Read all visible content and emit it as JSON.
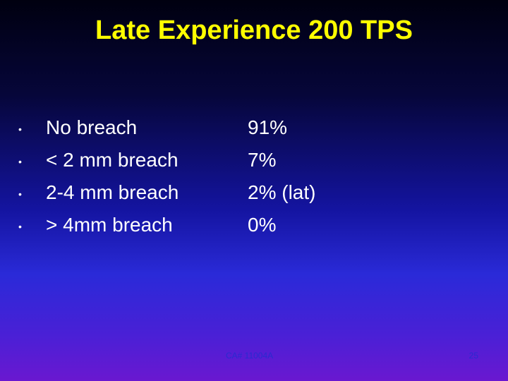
{
  "slide": {
    "title": "Late Experience 200 TPS",
    "bullet_symbol": "•",
    "rows": [
      {
        "label": "No breach",
        "value": "91%"
      },
      {
        "label": "< 2 mm breach",
        "value": "7%"
      },
      {
        "label": "2-4 mm breach",
        "value": "2% (lat)"
      },
      {
        "label": "> 4mm breach",
        "value": "0%"
      }
    ],
    "footer": {
      "label": "CA# 11004A",
      "page_number": "25"
    }
  },
  "colors": {
    "title": "#ffff00",
    "text": "#ffffff",
    "footer": "#2a2ad0",
    "background_top": "#000010",
    "background_bottom": "#6a18d0"
  }
}
